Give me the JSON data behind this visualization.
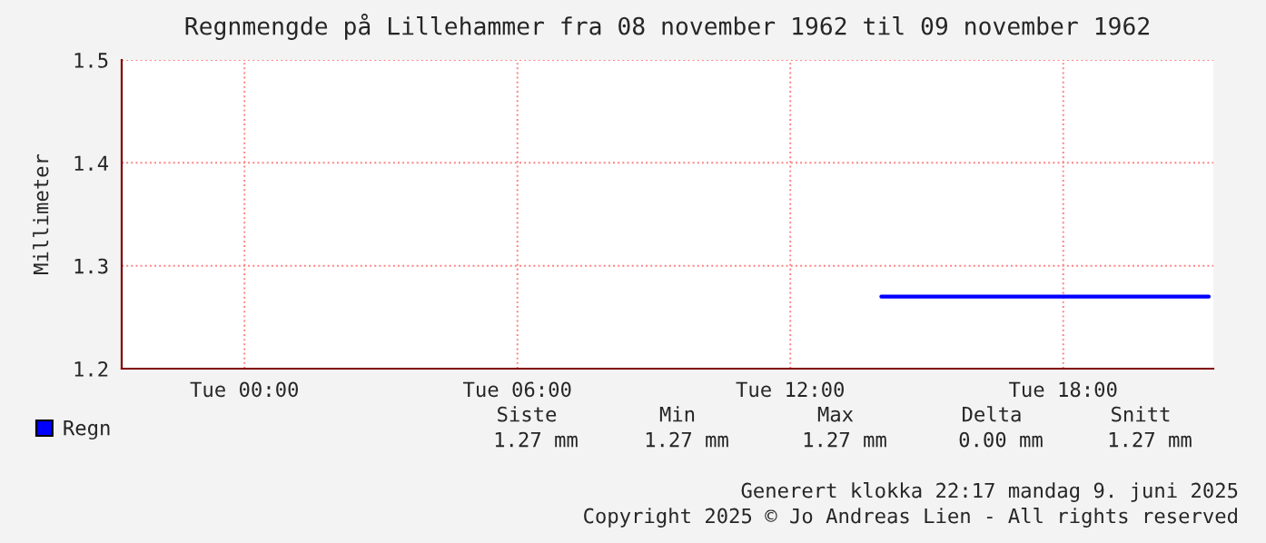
{
  "chart_data": {
    "type": "line",
    "title": "Regnmengde på Lillehammer fra 08 november 1962 til 09 november 1962",
    "ylabel": "Millimeter",
    "series": [
      {
        "name": "Regn",
        "color": "#0000ff",
        "x": [
          "1962-11-09T14:00",
          "1962-11-09T21:12"
        ],
        "values": [
          1.27,
          1.27
        ]
      }
    ],
    "xlim": [
      "1962-11-08T21:18",
      "1962-11-09T21:18"
    ],
    "xticks": [
      {
        "value": "1962-11-09T00:00",
        "label": "Tue 00:00"
      },
      {
        "value": "1962-11-09T06:00",
        "label": "Tue 06:00"
      },
      {
        "value": "1962-11-09T12:00",
        "label": "Tue 12:00"
      },
      {
        "value": "1962-11-09T18:00",
        "label": "Tue 18:00"
      }
    ],
    "ylim": [
      1.2,
      1.5
    ],
    "yticks": [
      1.2,
      1.3,
      1.4,
      1.5
    ],
    "grid": true,
    "legend": "bottom left",
    "marker": "none",
    "line_style": "solid",
    "annotations": [
      "Siste",
      "Min",
      "Max",
      "Delta",
      "Snitt",
      "1.27 mm",
      "1.27 mm",
      "1.27 mm",
      "0.00 mm",
      "1.27 mm",
      "Generert klokka 22:17 mandag 9. juni 2025",
      "Copyright 2025 © Jo Andreas Lien - All rights reserved"
    ]
  }
}
